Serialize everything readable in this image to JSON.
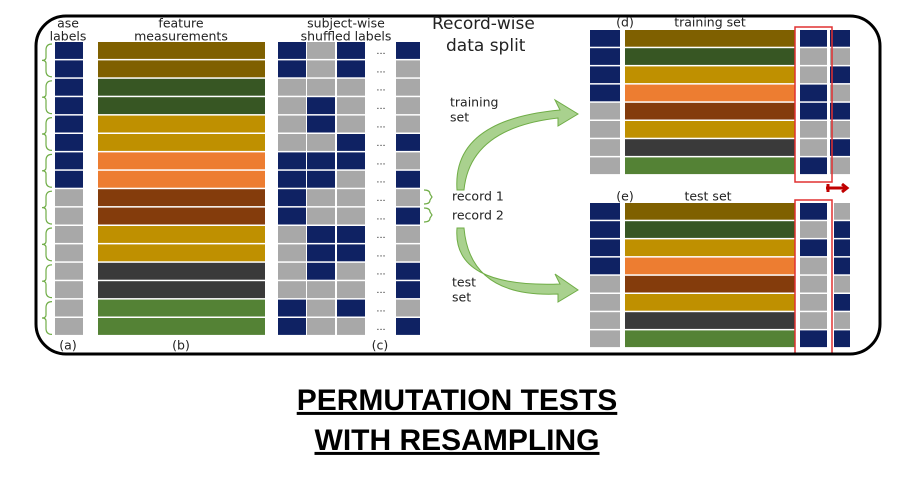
{
  "panel_a": {
    "header": [
      "ase",
      "labels"
    ],
    "label": "(a)"
  },
  "panel_b": {
    "header": [
      "feature",
      "measurements"
    ],
    "label": "(b)"
  },
  "panel_c": {
    "header": [
      "subject-wise",
      "shuffled labels"
    ],
    "label": "(c)",
    "ellipsis": "..."
  },
  "split": {
    "title": [
      "Record-wise",
      "data split"
    ],
    "training_arrow": [
      "training",
      "set"
    ],
    "test_arrow": [
      "test",
      "set"
    ],
    "records": [
      "record 1",
      "record 2"
    ]
  },
  "panel_d": {
    "label": "(d)",
    "title": "training set"
  },
  "panel_e": {
    "label": "(e)",
    "title": "test set"
  },
  "caption": [
    "PERMUTATION TESTS",
    "WITH RESAMPLING"
  ]
}
